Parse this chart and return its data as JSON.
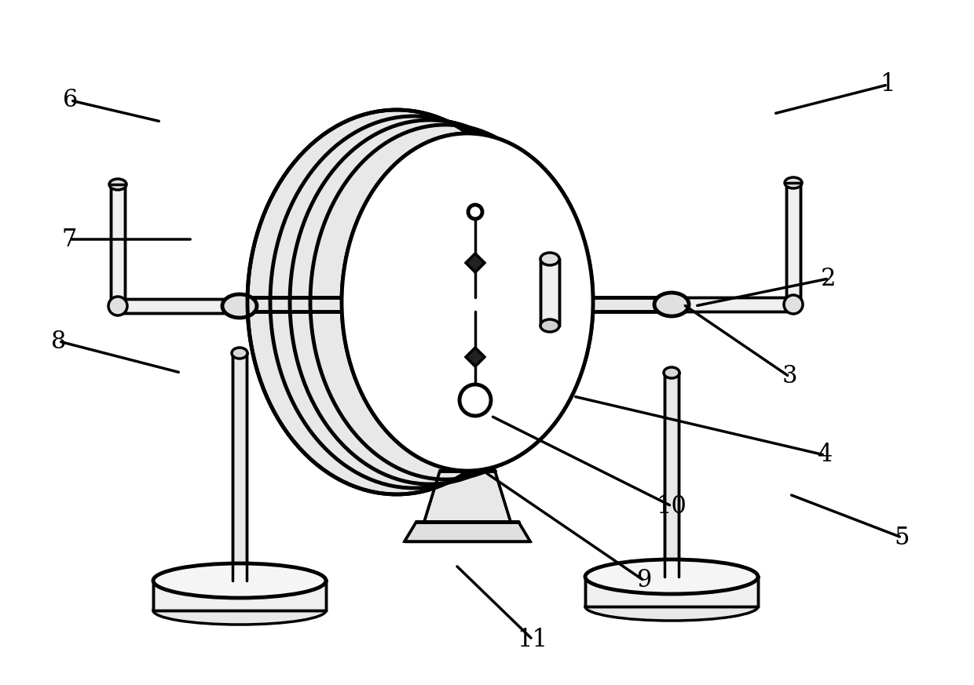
{
  "bg_color": "#ffffff",
  "line_color": "#000000",
  "lw": 2.5,
  "tlw": 3.5,
  "label_fontsize": 22,
  "figsize": [
    12.4,
    8.73
  ],
  "dpi": 100,
  "annotations": [
    [
      "1",
      1130,
      108,
      985,
      145
    ],
    [
      "2",
      1055,
      355,
      885,
      390
    ],
    [
      "3",
      1005,
      480,
      870,
      388
    ],
    [
      "4",
      1050,
      580,
      730,
      505
    ],
    [
      "5",
      1148,
      685,
      1005,
      630
    ],
    [
      "6",
      90,
      128,
      205,
      155
    ],
    [
      "7",
      88,
      305,
      245,
      305
    ],
    [
      "8",
      75,
      435,
      230,
      475
    ],
    [
      "9",
      820,
      740,
      615,
      600
    ],
    [
      "10",
      855,
      645,
      625,
      530
    ],
    [
      "11",
      678,
      815,
      580,
      720
    ]
  ]
}
